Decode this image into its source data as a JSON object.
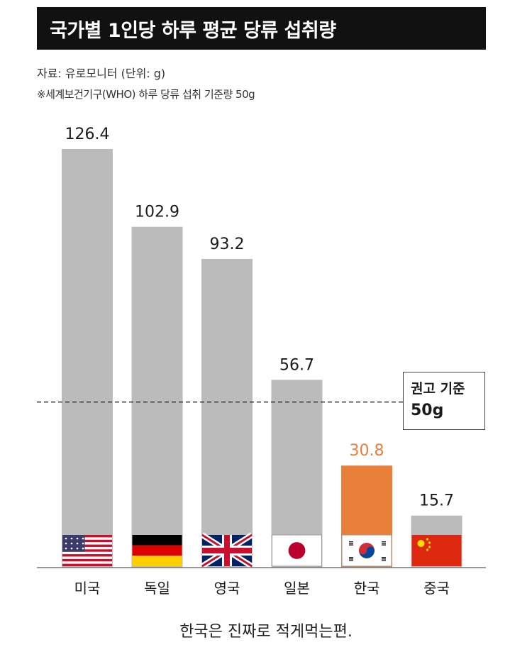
{
  "header": {
    "title": "국가별 1인당 하루 평균 당류 섭취량",
    "source": "자료: 유로모니터 (단위: g)",
    "note": "※세계보건기구(WHO) 하루 당류 섭취 기준량 50g"
  },
  "reference": {
    "label": "권고 기준",
    "value_text": "50g",
    "value": 50
  },
  "caption": "한국은 진짜로 적게먹는편.",
  "colors": {
    "bar": "#bbbbbb",
    "highlight": "#e8803a",
    "highlight_label": "#e8803a",
    "label": "#1a1a1a"
  },
  "chart_data": {
    "type": "bar",
    "categories": [
      "미국",
      "독일",
      "영국",
      "일본",
      "한국",
      "중국"
    ],
    "values": [
      126.4,
      102.9,
      93.2,
      56.7,
      30.8,
      15.7
    ],
    "value_labels": [
      "126.4",
      "102.9",
      "93.2",
      "56.7",
      "30.8",
      "15.7"
    ],
    "highlight_index": 4,
    "flag_icons": [
      "usa-flag-icon",
      "germany-flag-icon",
      "uk-flag-icon",
      "japan-flag-icon",
      "korea-flag-icon",
      "china-flag-icon"
    ],
    "reference_line": 50,
    "grid": false,
    "legend": "right"
  }
}
